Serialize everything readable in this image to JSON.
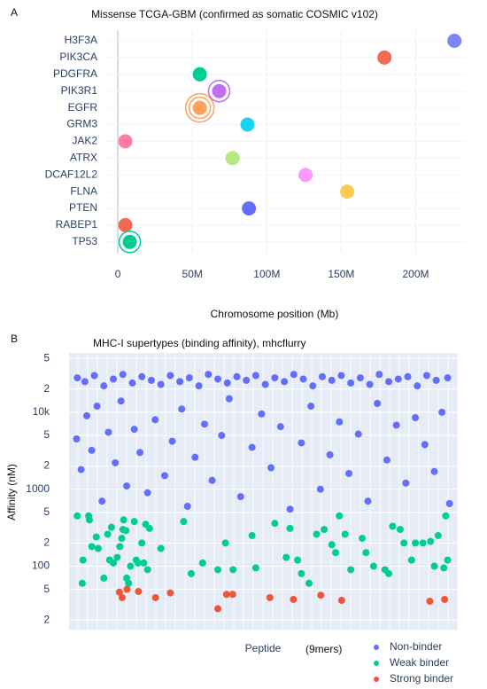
{
  "chart_data": [
    {
      "type": "dot",
      "panel": "A",
      "title": "Missense TCGA-GBM (confirmed as somatic COSMIC v102)",
      "xlabel": "Chromosome position (Mb)",
      "categories": [
        "H3F3A",
        "PIK3CA",
        "PDGFRA",
        "PIK3R1",
        "EGFR",
        "GRM3",
        "JAK2",
        "ATRX",
        "DCAF12L2",
        "FLNA",
        "PTEN",
        "RABEP1",
        "TP53"
      ],
      "values": [
        226,
        179,
        55,
        68,
        55,
        87,
        5,
        77,
        126,
        154,
        88,
        5,
        8
      ],
      "sizes": [
        1,
        1,
        1,
        2,
        3,
        1,
        1,
        1,
        1,
        1,
        1,
        1,
        2
      ],
      "colors": [
        "#7f84f5",
        "#ef6b55",
        "#00cc96",
        "#c06ef0",
        "#ffa15a",
        "#19d3f3",
        "#ff7fa3",
        "#b6e880",
        "#ff97ff",
        "#fecb52",
        "#636efa",
        "#ef6b55",
        "#00cc96"
      ],
      "xlim": [
        -9,
        233
      ],
      "xticks": [
        0,
        {
          "value": 50,
          "label": "50M"
        },
        {
          "value": 100,
          "label": "100M"
        },
        {
          "value": 150,
          "label": "150M"
        },
        {
          "value": 200,
          "label": "200M"
        }
      ],
      "grid": true
    },
    {
      "type": "scatter",
      "panel": "B",
      "title": "MHC-I supertypes (binding affinity), mhcflurry",
      "xlabel": "Peptide",
      "xlabel_note": "(9mers)",
      "ylabel": "Affinity (nM)",
      "log_y": true,
      "ylim": [
        15,
        59000
      ],
      "xlim": [
        0,
        1000
      ],
      "legend": "bottom-right",
      "yticks": [
        {
          "value": 20,
          "label": "2"
        },
        {
          "value": 50,
          "label": "5"
        },
        100,
        {
          "value": 200,
          "label": "2"
        },
        {
          "value": 500,
          "label": "5"
        },
        1000,
        {
          "value": 2000,
          "label": "2"
        },
        {
          "value": 5000,
          "label": "5"
        },
        {
          "value": 10000,
          "label": "10k"
        },
        {
          "value": 20000,
          "label": "2"
        },
        {
          "value": 50000,
          "label": "5"
        }
      ],
      "series": [
        {
          "name": "Non-binder",
          "color": "#636efa",
          "x": [
            10,
            30,
            55,
            80,
            105,
            130,
            155,
            180,
            205,
            230,
            255,
            280,
            305,
            330,
            355,
            380,
            405,
            430,
            455,
            480,
            505,
            530,
            555,
            580,
            605,
            630,
            655,
            680,
            705,
            730,
            755,
            780,
            805,
            830,
            855,
            880,
            905,
            930,
            955,
            985,
            8,
            20,
            35,
            48,
            62,
            75,
            92,
            110,
            125,
            140,
            160,
            175,
            195,
            215,
            240,
            260,
            285,
            300,
            320,
            345,
            365,
            390,
            410,
            440,
            470,
            495,
            520,
            545,
            570,
            600,
            625,
            650,
            675,
            700,
            725,
            750,
            775,
            800,
            825,
            850,
            875,
            900,
            925,
            950,
            970,
            990
          ],
          "values": [
            28000,
            25000,
            30000,
            22000,
            27000,
            31000,
            24000,
            29000,
            26000,
            23000,
            30000,
            25000,
            28000,
            22000,
            31000,
            27000,
            24000,
            29000,
            26000,
            30000,
            23000,
            28000,
            25000,
            31000,
            27000,
            22000,
            29000,
            26000,
            30000,
            24000,
            28000,
            23000,
            31000,
            25000,
            27000,
            29000,
            22000,
            30000,
            26000,
            28000,
            4500,
            1800,
            9000,
            3200,
            12000,
            700,
            5500,
            2200,
            14000,
            1100,
            6000,
            3000,
            900,
            8000,
            1500,
            4200,
            11000,
            600,
            2600,
            7000,
            1300,
            5000,
            15000,
            800,
            3500,
            9500,
            1900,
            6500,
            550,
            4000,
            12000,
            1000,
            2800,
            7500,
            1600,
            5200,
            700,
            13000,
            2400,
            6800,
            1200,
            8500,
            3800,
            1700,
            10000,
            650
          ]
        },
        {
          "name": "Weak binder",
          "color": "#00cc96",
          "x": [
            10,
            25,
            23,
            40,
            42,
            48,
            60,
            65,
            80,
            90,
            100,
            95,
            105,
            115,
            122,
            127,
            130,
            132,
            138,
            140,
            145,
            150,
            160,
            165,
            170,
            180,
            185,
            190,
            195,
            200,
            230,
            290,
            310,
            340,
            380,
            400,
            420,
            470,
            480,
            530,
            560,
            570,
            590,
            600,
            620,
            640,
            660,
            680,
            690,
            700,
            715,
            730,
            760,
            770,
            790,
            820,
            830,
            840,
            860,
            870,
            890,
            900,
            920,
            940,
            950,
            960,
            980,
            985,
            975
          ],
          "values": [
            450,
            120,
            60,
            450,
            400,
            180,
            240,
            170,
            70,
            260,
            320,
            120,
            110,
            130,
            180,
            230,
            300,
            400,
            290,
            70,
            60,
            100,
            380,
            120,
            110,
            200,
            110,
            350,
            90,
            310,
            170,
            380,
            80,
            110,
            90,
            200,
            90,
            250,
            95,
            360,
            130,
            310,
            120,
            80,
            60,
            260,
            300,
            190,
            150,
            450,
            260,
            90,
            230,
            150,
            100,
            90,
            80,
            330,
            300,
            200,
            120,
            200,
            200,
            210,
            100,
            250,
            450,
            120,
            95
          ]
        },
        {
          "name": "Strong binder",
          "color": "#ef553b",
          "x": [
            121,
            128,
            141,
            171,
            216,
            255,
            380,
            403,
            419,
            517,
            579,
            651,
            706,
            938,
            977
          ],
          "values": [
            46,
            39,
            50,
            47,
            39,
            45,
            28,
            43,
            43,
            39,
            37,
            42,
            36,
            35,
            37
          ]
        }
      ]
    }
  ]
}
